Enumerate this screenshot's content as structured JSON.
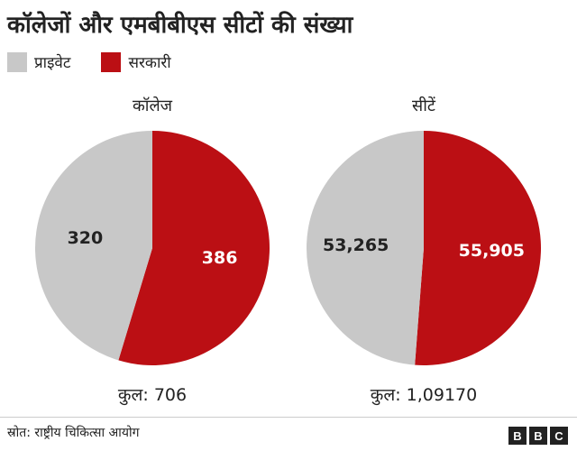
{
  "header": {
    "title": "कॉलेजों और एमबीबीएस सीटों की संख्या"
  },
  "legend": [
    {
      "label": "प्राइवेट",
      "color": "#c8c8c8"
    },
    {
      "label": "सरकारी",
      "color": "#bb0f14"
    }
  ],
  "chart_data": [
    {
      "type": "pie",
      "title": "कॉलेज",
      "categories": [
        "प्राइवेट",
        "सरकारी"
      ],
      "values": [
        320,
        386
      ],
      "value_labels": [
        "320",
        "386"
      ],
      "colors": [
        "#c8c8c8",
        "#bb0f14"
      ],
      "total_label": "कुल: 706"
    },
    {
      "type": "pie",
      "title": "सीटें",
      "categories": [
        "प्राइवेट",
        "सरकारी"
      ],
      "values": [
        53265,
        55905
      ],
      "value_labels": [
        "53,265",
        "55,905"
      ],
      "colors": [
        "#c8c8c8",
        "#bb0f14"
      ],
      "total_label": "कुल: 1,09170"
    }
  ],
  "footer": {
    "source": "स्रोत: राष्ट्रीय चिकित्सा आयोग",
    "logo": [
      "B",
      "B",
      "C"
    ]
  }
}
